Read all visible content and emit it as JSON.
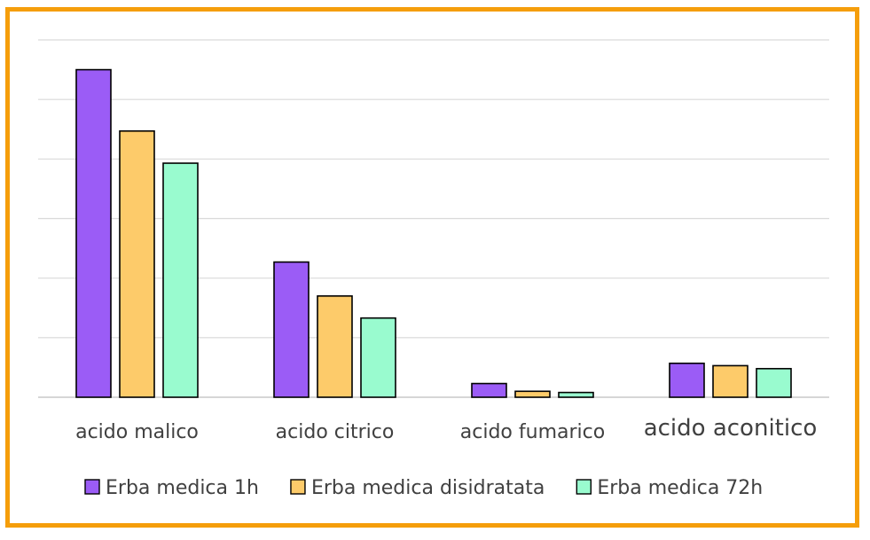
{
  "chart_data": {
    "type": "bar",
    "title": "",
    "xlabel": "",
    "ylabel": "",
    "categories": [
      "acido malico",
      "acido citrico",
      "acido fumarico",
      "acido aconitico"
    ],
    "series": [
      {
        "name": "Erba medica 1h",
        "color": "#9b5cf6",
        "values": [
          5.5,
          2.27,
          0.23,
          0.57
        ]
      },
      {
        "name": "Erba medica disidratata",
        "color": "#fdcb6a",
        "values": [
          4.47,
          1.7,
          0.1,
          0.53
        ]
      },
      {
        "name": "Erba medica 72h",
        "color": "#99fbcf",
        "values": [
          3.93,
          1.33,
          0.08,
          0.48
        ]
      }
    ],
    "ylim": [
      0,
      6
    ],
    "grid": true,
    "legend": "bottom"
  }
}
